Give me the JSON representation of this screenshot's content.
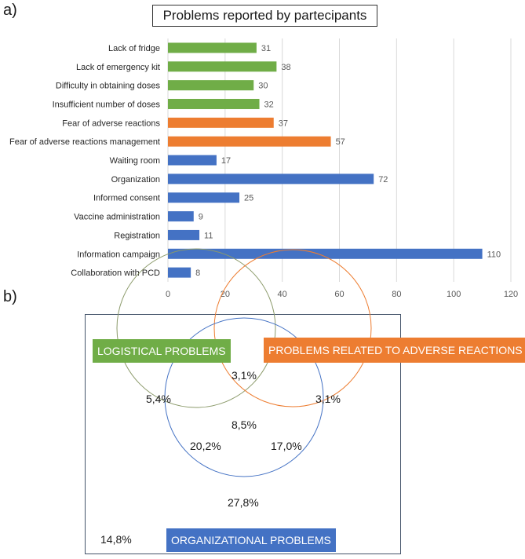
{
  "panel_a_label": "a)",
  "panel_b_label": "b)",
  "chart_data": {
    "type": "bar",
    "orientation": "horizontal",
    "title": "Problems reported by partecipants",
    "categories": [
      "Lack of fridge",
      "Lack of emergency kit",
      "Difficulty in obtaining doses",
      "Insufficient number of doses",
      "Fear of adverse reactions",
      "Fear of adverse reactions management",
      "Waiting room",
      "Organization",
      "Informed consent",
      "Vaccine administration",
      "Registration",
      "Information campaign",
      "Collaboration with PCD"
    ],
    "values": [
      31,
      38,
      30,
      32,
      37,
      57,
      17,
      72,
      25,
      9,
      11,
      110,
      8
    ],
    "bar_colors": [
      "#70ad47",
      "#70ad47",
      "#70ad47",
      "#70ad47",
      "#ed7d31",
      "#ed7d31",
      "#4472c4",
      "#4472c4",
      "#4472c4",
      "#4472c4",
      "#4472c4",
      "#4472c4",
      "#4472c4"
    ],
    "xlim": [
      0,
      120
    ],
    "xticks": [
      0,
      20,
      40,
      60,
      80,
      100,
      120
    ],
    "grid": true
  },
  "venn": {
    "logistical_label": "LOGISTICAL PROBLEMS",
    "adverse_label": "PROBLEMS RELATED TO ADVERSE REACTIONS",
    "organizational_label": "ORGANIZATIONAL PROBLEMS",
    "only_logistical": "5,4%",
    "logistical_adverse": "3,1%",
    "only_adverse": "3,1%",
    "all_three": "8,5%",
    "logistical_organizational": "20,2%",
    "adverse_organizational": "17,0%",
    "only_organizational": "27,8%",
    "none": "14,8%",
    "colors": {
      "logistical": "#70ad47",
      "adverse": "#ed7d31",
      "organizational": "#4472c4"
    }
  }
}
